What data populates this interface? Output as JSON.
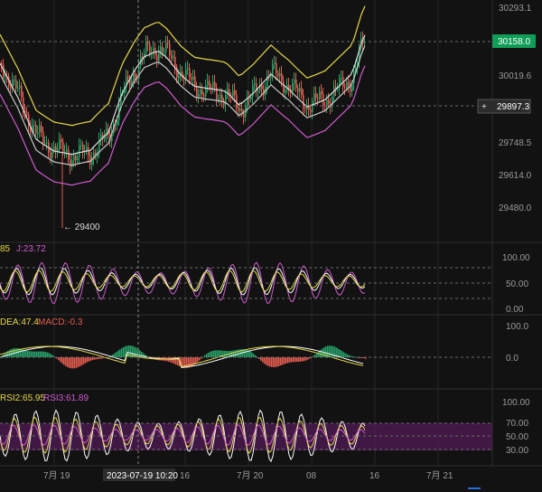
{
  "chart_data": [
    {
      "type": "candlestick",
      "panel": "price",
      "yticks": [
        "30293.1",
        "30019.6",
        "29748.5",
        "29614.0",
        "29480.0"
      ],
      "ylim": [
        29400,
        30320
      ],
      "current_price": "30158.0",
      "crosshair_price": "29897.3",
      "low_marker": "← 29400",
      "crosshair_plus": "+",
      "overlays": [
        "upper-band",
        "middle-band",
        "lower-band",
        "moving-average"
      ]
    },
    {
      "type": "line",
      "panel": "KDJ",
      "legend": [
        {
          "text": "85",
          "color": "#e6d84a"
        },
        {
          "text": "J:23.72",
          "color": "#d05bd0"
        }
      ],
      "yticks": [
        "100.00",
        "50.00",
        "0.00"
      ],
      "ylim": [
        -5,
        105
      ],
      "series": [
        {
          "name": "K",
          "color": "#ffffff"
        },
        {
          "name": "D",
          "color": "#e6d84a"
        },
        {
          "name": "J",
          "color": "#d05bd0"
        }
      ]
    },
    {
      "type": "bar",
      "panel": "MACD",
      "legend": [
        {
          "text": "DEA:47.4",
          "color": "#e6d84a"
        },
        {
          "text": "MACD:-0.3",
          "color": "#e45b4f"
        }
      ],
      "yticks": [
        "100.0",
        "0.0"
      ],
      "ylim": [
        -60,
        110
      ],
      "series": [
        {
          "name": "DIF",
          "color": "#ffffff"
        },
        {
          "name": "DEA",
          "color": "#e6d84a"
        }
      ]
    },
    {
      "type": "line",
      "panel": "RSI",
      "legend": [
        {
          "text": "RSI2:65.95",
          "color": "#e6d84a"
        },
        {
          "text": "RSI3:61.89",
          "color": "#d05bd0"
        }
      ],
      "yticks": [
        "100.00",
        "70.00",
        "50.00",
        "30.00"
      ],
      "ylim": [
        10,
        105
      ],
      "band": [
        30,
        70
      ],
      "series": [
        {
          "name": "RSI1",
          "color": "#ffffff"
        },
        {
          "name": "RSI2",
          "color": "#e6d84a"
        },
        {
          "name": "RSI3",
          "color": "#d05bd0"
        }
      ]
    }
  ],
  "x_axis": {
    "labels": [
      "7月 19",
      "16",
      "7月 20",
      "08",
      "16",
      "7月 21"
    ],
    "crosshair_label": "2023-07-19 10:20"
  },
  "colors": {
    "up": "#26a269",
    "down": "#e45b4f",
    "upper": "#e6d84a",
    "lower": "#d05bd0",
    "mid": "#dddddd",
    "band_fill": "#4a1a4e"
  }
}
